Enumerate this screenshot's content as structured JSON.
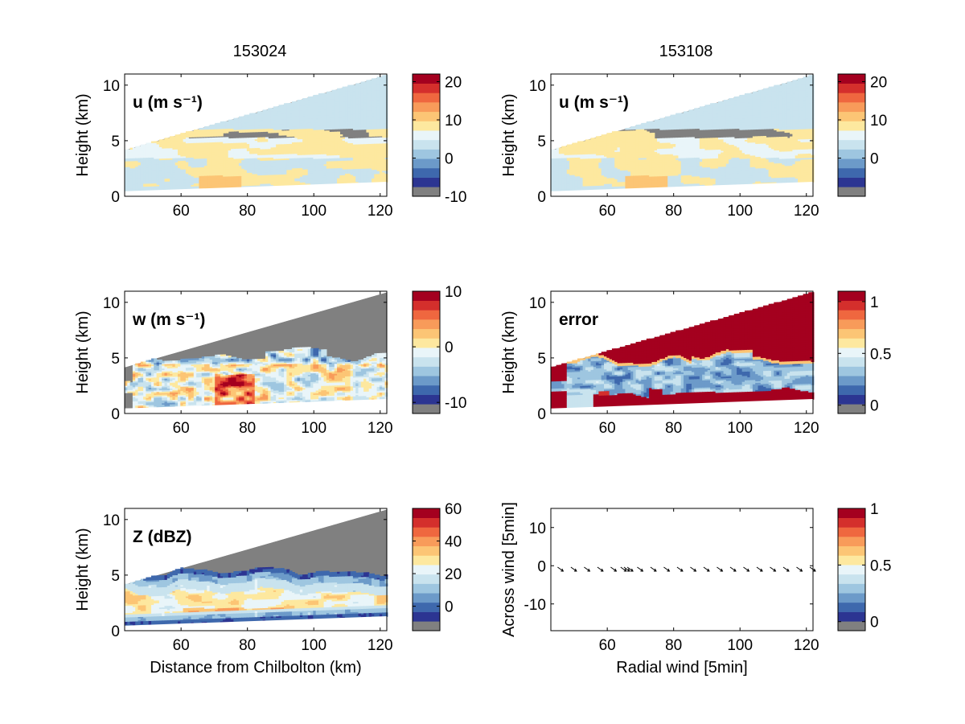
{
  "titles": [
    "153024",
    "153108"
  ],
  "colors": {
    "masked": "#808080",
    "palette": [
      "#2c3592",
      "#3e68ad",
      "#6c9ac9",
      "#9ec6e0",
      "#c9e3ee",
      "#e9f5f9",
      "#fde89f",
      "#fcc575",
      "#f89b5a",
      "#ef673f",
      "#d42f2c",
      "#a4001f"
    ]
  },
  "chart_data": [
    {
      "type": "heatmap",
      "title": "153024",
      "panel_label": "u (m s⁻¹)",
      "variable": "u",
      "ylabel": "Height (km)",
      "xlabel": "",
      "xlim": [
        43,
        122
      ],
      "ylim": [
        0,
        11
      ],
      "xticks": [
        60,
        80,
        100,
        120
      ],
      "yticks": [
        0,
        5,
        10
      ],
      "colorbar": {
        "ticks": [
          -10,
          0,
          10,
          20
        ],
        "range": [
          -10,
          22
        ]
      }
    },
    {
      "type": "heatmap",
      "title": "153108",
      "panel_label": "u (m s⁻¹)",
      "variable": "u",
      "ylabel": "Height (km)",
      "xlabel": "",
      "xlim": [
        43,
        122
      ],
      "ylim": [
        0,
        11
      ],
      "xticks": [
        60,
        80,
        100,
        120
      ],
      "yticks": [
        0,
        5,
        10
      ],
      "colorbar": {
        "ticks": [
          0,
          10,
          20
        ],
        "range": [
          -10,
          22
        ]
      }
    },
    {
      "type": "heatmap",
      "title": "",
      "panel_label": "w (m s⁻¹)",
      "variable": "w",
      "ylabel": "Height (km)",
      "xlabel": "",
      "xlim": [
        43,
        122
      ],
      "ylim": [
        0,
        11
      ],
      "xticks": [
        60,
        80,
        100,
        120
      ],
      "yticks": [
        0,
        5,
        10
      ],
      "colorbar": {
        "ticks": [
          -10,
          0,
          10
        ],
        "range": [
          -12,
          10
        ]
      }
    },
    {
      "type": "heatmap",
      "title": "",
      "panel_label": "error",
      "variable": "error",
      "ylabel": "Height (km)",
      "xlabel": "",
      "xlim": [
        43,
        122
      ],
      "ylim": [
        0,
        11
      ],
      "xticks": [
        60,
        80,
        100,
        120
      ],
      "yticks": [
        0,
        5,
        10
      ],
      "colorbar": {
        "ticks": [
          0,
          0.5,
          1
        ],
        "range": [
          -0.08,
          1.1
        ]
      }
    },
    {
      "type": "heatmap",
      "title": "",
      "panel_label": "Z (dBZ)",
      "variable": "Z",
      "ylabel": "Height (km)",
      "xlabel": "Distance from Chilbolton (km)",
      "xlim": [
        43,
        122
      ],
      "ylim": [
        0,
        11
      ],
      "xticks": [
        60,
        80,
        100,
        120
      ],
      "yticks": [
        0,
        5,
        10
      ],
      "colorbar": {
        "ticks": [
          0,
          20,
          40,
          60
        ],
        "range": [
          -15,
          60
        ]
      }
    },
    {
      "type": "scatter",
      "title": "",
      "panel_label": "",
      "variable": "quiver",
      "ylabel": "Across wind [5min]",
      "xlabel": "Radial wind [5min]",
      "xlim": [
        43,
        122
      ],
      "ylim": [
        -17,
        15
      ],
      "xticks": [
        60,
        80,
        100,
        120
      ],
      "yticks": [
        -10,
        0,
        10
      ],
      "x": [
        46,
        50,
        54,
        58,
        62,
        65,
        66,
        67,
        70,
        74,
        78,
        82,
        86,
        90,
        94,
        98,
        102,
        106,
        110,
        114,
        118,
        122
      ],
      "y": [
        -1,
        -1,
        -1,
        -1,
        -1,
        -1,
        -1,
        -1,
        -1,
        -1,
        -1,
        -1,
        -1,
        -1,
        -1,
        -1,
        -1,
        -1,
        -1,
        -1,
        -1,
        -1
      ],
      "colorbar": {
        "ticks": [
          0,
          0.5,
          1
        ],
        "range": [
          -0.08,
          1.0
        ]
      }
    }
  ]
}
